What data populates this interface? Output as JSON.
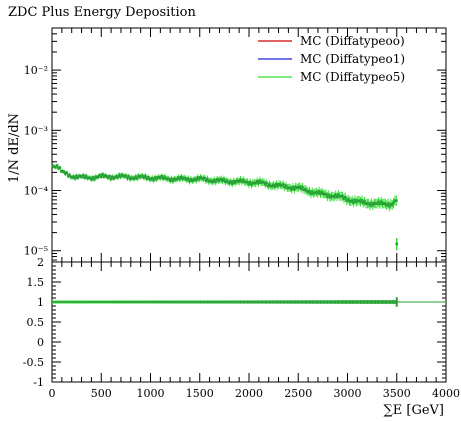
{
  "title": "ZDC Plus Energy Deposition",
  "chart_data": [
    {
      "type": "scatter",
      "title": "ZDC Plus Energy Deposition",
      "ylabel": "1/N dE/dN",
      "xlabel": "",
      "y_scale": "log",
      "ylim": [
        6.5e-06,
        0.05
      ],
      "xlim": [
        0,
        4000
      ],
      "y_ticks": [
        {
          "value": 1e-05,
          "label": "10⁻⁵"
        },
        {
          "value": 0.0001,
          "label": "10⁻⁴"
        },
        {
          "value": 0.001,
          "label": "10⁻³"
        },
        {
          "value": 0.01,
          "label": "10⁻²"
        }
      ],
      "legend_position": "top-right",
      "series": [
        {
          "name": "MC (Diffatypeoo)",
          "color": "#cc0000"
        },
        {
          "name": "MC (Diffatypeo1)",
          "color": "#2222dd"
        },
        {
          "name": "MC (Diffatypeo5)",
          "color": "#33dd33"
        }
      ],
      "profile": {
        "x": [
          20,
          60,
          100,
          200,
          300,
          400,
          500,
          700,
          900,
          1100,
          1300,
          1500,
          1700,
          1900,
          2100,
          2300,
          2500,
          2700,
          2900,
          3100,
          3300,
          3450,
          3500
        ],
        "y": [
          0.00026,
          0.00025,
          0.0002,
          0.000175,
          0.000165,
          0.000165,
          0.00017,
          0.00017,
          0.000165,
          0.00016,
          0.000155,
          0.000155,
          0.000145,
          0.00014,
          0.000135,
          0.00012,
          0.00011,
          9e-05,
          8e-05,
          6.5e-05,
          6e-05,
          6e-05,
          7e-05
        ]
      },
      "spike": {
        "x": 3500,
        "y": 1.3e-05
      }
    },
    {
      "type": "line",
      "xlabel": "∑E [GeV]",
      "ylabel": "",
      "xlim": [
        0,
        4000
      ],
      "ylim": [
        -1,
        2
      ],
      "x_ticks": [
        "0",
        "500",
        "1000",
        "1500",
        "2000",
        "2500",
        "3000",
        "3500",
        "4000"
      ],
      "y_ticks": [
        "-1",
        "-0.5",
        "0",
        "0.5",
        "1",
        "1.5",
        "2"
      ],
      "ratio": {
        "x_range": [
          0,
          3500
        ],
        "value": 1.0,
        "band": 0.04
      }
    }
  ]
}
